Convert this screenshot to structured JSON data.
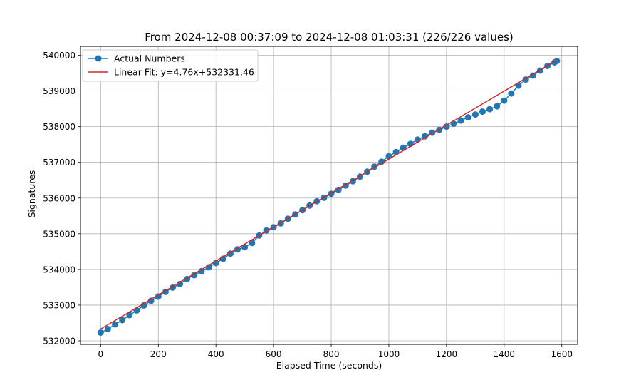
{
  "chart_data": {
    "type": "scatter",
    "title": "From 2024-12-08 00:37:09 to 2024-12-08 01:03:31 (226/226 values)",
    "xlabel": "Elapsed Time (seconds)",
    "ylabel": "Signatures",
    "xlim": [
      -70,
      1655
    ],
    "ylim": [
      531900,
      540250
    ],
    "xticks": [
      0,
      200,
      400,
      600,
      800,
      1000,
      1200,
      1400,
      1600
    ],
    "yticks": [
      532000,
      533000,
      534000,
      535000,
      536000,
      537000,
      538000,
      539000,
      540000
    ],
    "grid": true,
    "legend_position": "top-left",
    "series": [
      {
        "name": "Actual Numbers",
        "color": "#1f77b4",
        "kind": "line-with-markers",
        "points": [
          [
            0,
            532230
          ],
          [
            25,
            532330
          ],
          [
            50,
            532460
          ],
          [
            75,
            532580
          ],
          [
            100,
            532720
          ],
          [
            125,
            532850
          ],
          [
            150,
            532990
          ],
          [
            175,
            533120
          ],
          [
            200,
            533240
          ],
          [
            225,
            533370
          ],
          [
            250,
            533490
          ],
          [
            275,
            533590
          ],
          [
            300,
            533730
          ],
          [
            325,
            533840
          ],
          [
            350,
            533950
          ],
          [
            375,
            534060
          ],
          [
            400,
            534180
          ],
          [
            425,
            534300
          ],
          [
            450,
            534440
          ],
          [
            475,
            534560
          ],
          [
            500,
            534620
          ],
          [
            525,
            534740
          ],
          [
            550,
            534950
          ],
          [
            575,
            535090
          ],
          [
            600,
            535180
          ],
          [
            625,
            535290
          ],
          [
            650,
            535420
          ],
          [
            675,
            535540
          ],
          [
            700,
            535660
          ],
          [
            725,
            535790
          ],
          [
            750,
            535910
          ],
          [
            775,
            536010
          ],
          [
            800,
            536120
          ],
          [
            825,
            536230
          ],
          [
            850,
            536350
          ],
          [
            875,
            536470
          ],
          [
            900,
            536600
          ],
          [
            925,
            536740
          ],
          [
            950,
            536880
          ],
          [
            975,
            537020
          ],
          [
            1000,
            537170
          ],
          [
            1025,
            537290
          ],
          [
            1050,
            537410
          ],
          [
            1075,
            537520
          ],
          [
            1100,
            537640
          ],
          [
            1125,
            537730
          ],
          [
            1150,
            537830
          ],
          [
            1175,
            537910
          ],
          [
            1200,
            538000
          ],
          [
            1225,
            538080
          ],
          [
            1250,
            538170
          ],
          [
            1275,
            538260
          ],
          [
            1300,
            538340
          ],
          [
            1325,
            538420
          ],
          [
            1350,
            538490
          ],
          [
            1375,
            538570
          ],
          [
            1400,
            538730
          ],
          [
            1425,
            538930
          ],
          [
            1450,
            539150
          ],
          [
            1475,
            539320
          ],
          [
            1500,
            539430
          ],
          [
            1525,
            539570
          ],
          [
            1550,
            539700
          ],
          [
            1575,
            539800
          ],
          [
            1583,
            539840
          ]
        ]
      },
      {
        "name": "Linear Fit: y=4.76x+532331.46",
        "color": "#d62728",
        "kind": "line",
        "slope": 4.76,
        "intercept": 532331.46,
        "x_range": [
          0,
          1583
        ]
      }
    ]
  }
}
